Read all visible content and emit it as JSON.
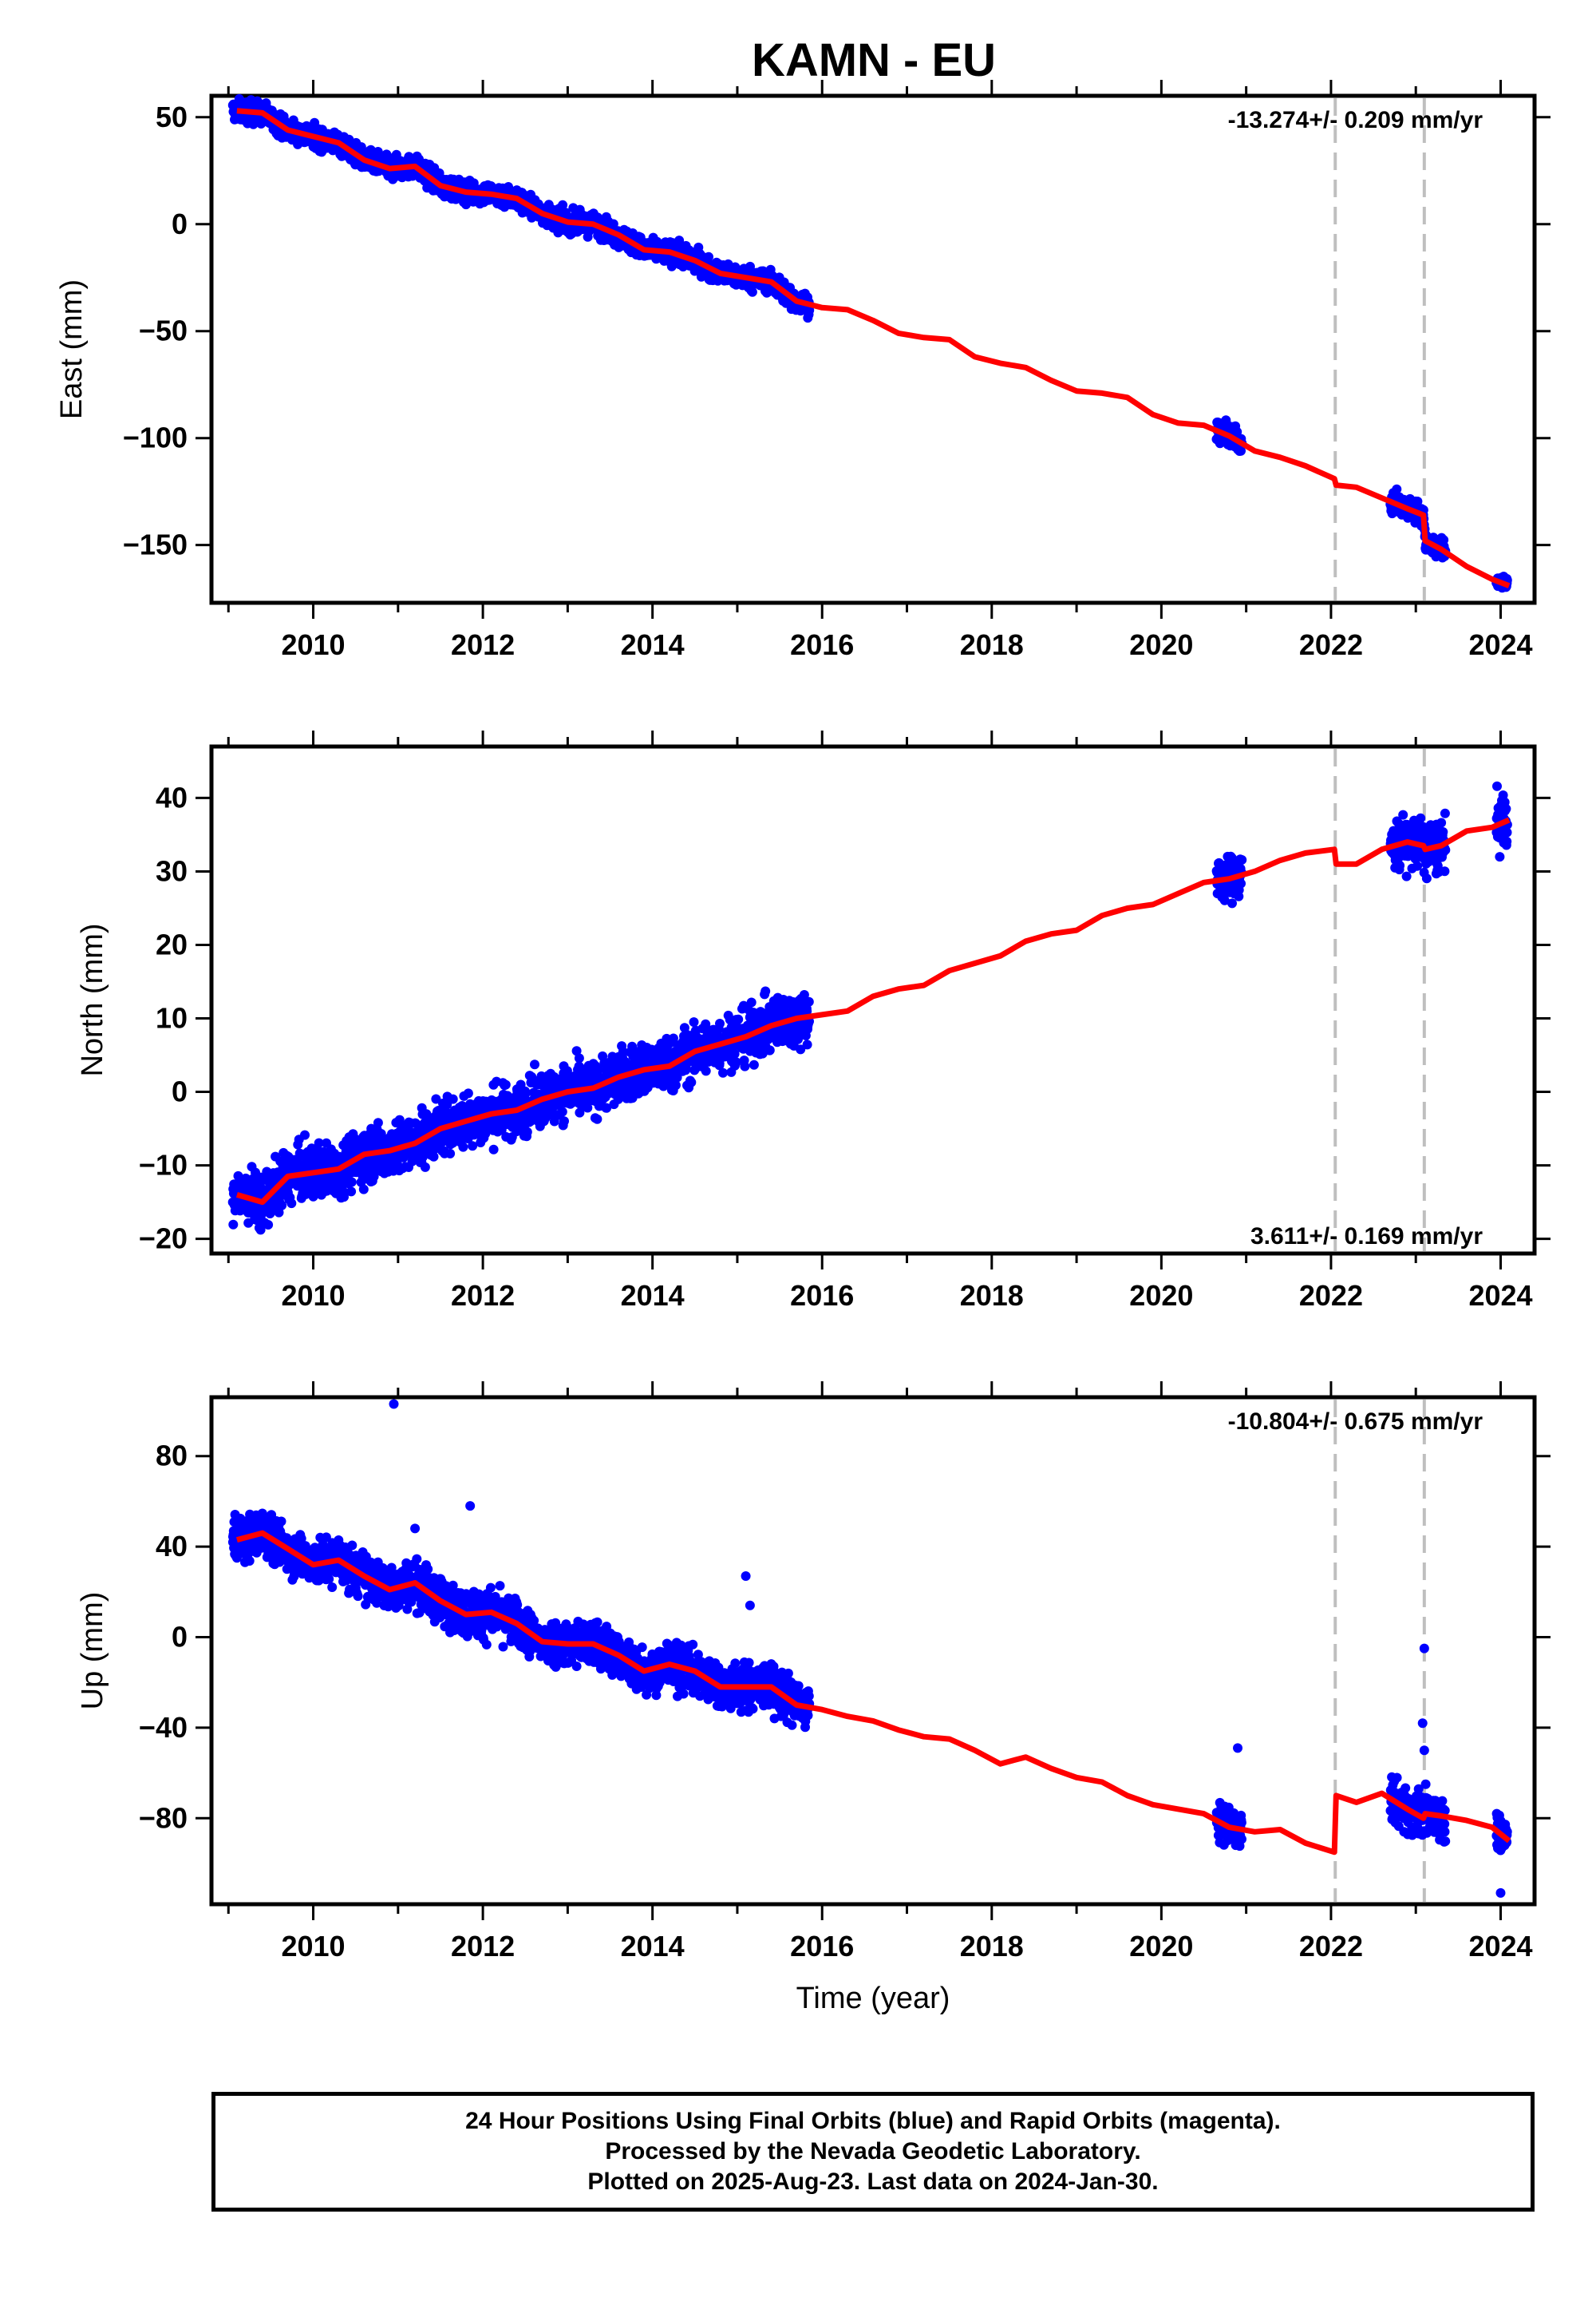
{
  "title": "KAMN - EU",
  "caption": {
    "line1": "24 Hour Positions Using Final Orbits (blue) and Rapid Orbits (magenta).",
    "line2": "Processed by the Nevada Geodetic Laboratory.",
    "line3": "Plotted on 2025-Aug-23. Last data on 2024-Jan-30."
  },
  "colors": {
    "data": "#0000ff",
    "model": "#ff0000",
    "offset_lines": "#bfbfbf"
  },
  "chart_data": [
    {
      "type": "scatter",
      "ylabel": "East (mm)",
      "xlabel": "",
      "xlim": [
        2008.8,
        2024.4
      ],
      "ylim": [
        -177,
        60
      ],
      "xticks": [
        2010,
        2012,
        2014,
        2016,
        2018,
        2020,
        2022,
        2024
      ],
      "yticks": [
        50,
        0,
        -50,
        -100,
        -150
      ],
      "rate_label": "-13.274+/- 0.209 mm/yr",
      "rate_label_position": "top-right",
      "offset_epochs": [
        2022.05,
        2023.1
      ],
      "model_line": {
        "name": "model",
        "x": [
          2009.1,
          2009.4,
          2009.7,
          2010.0,
          2010.3,
          2010.6,
          2010.9,
          2011.2,
          2011.5,
          2011.8,
          2012.1,
          2012.4,
          2012.7,
          2013.0,
          2013.3,
          2013.6,
          2013.9,
          2014.2,
          2014.5,
          2014.8,
          2015.1,
          2015.4,
          2015.7,
          2016.0,
          2016.3,
          2016.6,
          2016.9,
          2017.2,
          2017.5,
          2017.8,
          2018.1,
          2018.4,
          2018.7,
          2019.0,
          2019.3,
          2019.6,
          2019.9,
          2020.2,
          2020.5,
          2020.8,
          2021.1,
          2021.4,
          2021.7,
          2022.04,
          2022.06,
          2022.3,
          2022.6,
          2022.9,
          2023.09,
          2023.11,
          2023.3,
          2023.6,
          2023.9,
          2024.1
        ],
        "y": [
          53,
          52,
          44,
          41,
          38,
          30,
          26,
          27,
          18,
          15,
          14,
          12,
          5,
          1,
          0,
          -5,
          -12,
          -13,
          -17,
          -23,
          -25,
          -27,
          -36,
          -39,
          -40,
          -45,
          -51,
          -53,
          -54,
          -62,
          -65,
          -67,
          -73,
          -78,
          -79,
          -81,
          -89,
          -93,
          -94,
          -99,
          -106,
          -109,
          -113,
          -119,
          -122,
          -123,
          -128,
          -133,
          -136,
          -148,
          -152,
          -160,
          -166,
          -169
        ]
      },
      "data_segments": [
        {
          "from": 2009.05,
          "to": 2015.85,
          "scatter": 2.5
        },
        {
          "from": 2020.65,
          "to": 2020.95,
          "scatter": 2.5
        },
        {
          "from": 2022.7,
          "to": 2023.35,
          "scatter": 2.5
        },
        {
          "from": 2023.95,
          "to": 2024.08,
          "scatter": 1.5
        }
      ]
    },
    {
      "type": "scatter",
      "ylabel": "North (mm)",
      "xlabel": "",
      "xlim": [
        2008.8,
        2024.4
      ],
      "ylim": [
        -22,
        47
      ],
      "xticks": [
        2010,
        2012,
        2014,
        2016,
        2018,
        2020,
        2022,
        2024
      ],
      "yticks": [
        40,
        30,
        20,
        10,
        0,
        -10,
        -20
      ],
      "rate_label": "3.611+/- 0.169 mm/yr",
      "rate_label_position": "bottom-right",
      "offset_epochs": [
        2022.05,
        2023.1
      ],
      "model_line": {
        "name": "model",
        "x": [
          2009.1,
          2009.4,
          2009.7,
          2010.0,
          2010.3,
          2010.6,
          2010.9,
          2011.2,
          2011.5,
          2011.8,
          2012.1,
          2012.4,
          2012.7,
          2013.0,
          2013.3,
          2013.6,
          2013.9,
          2014.2,
          2014.5,
          2014.8,
          2015.1,
          2015.4,
          2015.7,
          2016.0,
          2016.3,
          2016.6,
          2016.9,
          2017.2,
          2017.5,
          2017.8,
          2018.1,
          2018.4,
          2018.7,
          2019.0,
          2019.3,
          2019.6,
          2019.9,
          2020.2,
          2020.5,
          2020.8,
          2021.1,
          2021.4,
          2021.7,
          2022.04,
          2022.06,
          2022.3,
          2022.6,
          2022.9,
          2023.09,
          2023.11,
          2023.3,
          2023.6,
          2023.9,
          2024.1
        ],
        "y": [
          -14,
          -15,
          -11.5,
          -11,
          -10.5,
          -8.5,
          -8,
          -7,
          -5,
          -4,
          -3,
          -2.5,
          -1,
          0,
          0.5,
          2,
          3,
          3.5,
          5.5,
          6.5,
          7.5,
          9,
          10,
          10.5,
          11,
          13,
          14,
          14.5,
          16.5,
          17.5,
          18.5,
          20.5,
          21.5,
          22,
          24,
          25,
          25.5,
          27,
          28.5,
          29,
          30,
          31.5,
          32.5,
          33,
          31,
          31,
          33,
          34,
          33.5,
          33,
          33.5,
          35.5,
          36,
          37
        ]
      },
      "data_segments": [
        {
          "from": 2009.05,
          "to": 2015.85,
          "scatter": 1.8
        },
        {
          "from": 2020.65,
          "to": 2020.95,
          "scatter": 1.5
        },
        {
          "from": 2022.7,
          "to": 2023.35,
          "scatter": 1.8
        },
        {
          "from": 2023.95,
          "to": 2024.08,
          "scatter": 2.0
        }
      ]
    },
    {
      "type": "scatter",
      "ylabel": "Up (mm)",
      "xlabel": "Time (year)",
      "xlim": [
        2008.8,
        2024.4
      ],
      "ylim": [
        -118,
        106
      ],
      "xticks": [
        2010,
        2012,
        2014,
        2016,
        2018,
        2020,
        2022,
        2024
      ],
      "yticks": [
        80,
        40,
        0,
        -40,
        -80
      ],
      "rate_label": "-10.804+/- 0.675 mm/yr",
      "rate_label_position": "top-right",
      "offset_epochs": [
        2022.05,
        2023.1
      ],
      "model_line": {
        "name": "model",
        "x": [
          2009.1,
          2009.4,
          2009.7,
          2010.0,
          2010.3,
          2010.6,
          2010.9,
          2011.2,
          2011.5,
          2011.8,
          2012.1,
          2012.4,
          2012.7,
          2013.0,
          2013.3,
          2013.6,
          2013.9,
          2014.2,
          2014.5,
          2014.8,
          2015.1,
          2015.4,
          2015.7,
          2016.0,
          2016.3,
          2016.6,
          2016.9,
          2017.2,
          2017.5,
          2017.8,
          2018.1,
          2018.4,
          2018.7,
          2019.0,
          2019.3,
          2019.6,
          2019.9,
          2020.2,
          2020.5,
          2020.8,
          2021.1,
          2021.4,
          2021.7,
          2022.04,
          2022.06,
          2022.3,
          2022.6,
          2022.9,
          2023.09,
          2023.11,
          2023.3,
          2023.6,
          2023.9,
          2024.1
        ],
        "y": [
          43,
          46,
          39,
          32,
          34,
          27,
          21,
          24,
          16,
          10,
          11,
          6,
          -2,
          -3,
          -3,
          -8,
          -15,
          -12,
          -15,
          -22,
          -22,
          -22,
          -30,
          -32,
          -35,
          -37,
          -41,
          -44,
          -45,
          -50,
          -56,
          -53,
          -58,
          -62,
          -64,
          -70,
          -74,
          -76,
          -78,
          -84,
          -86,
          -85,
          -91,
          -95,
          -70,
          -73,
          -69,
          -76,
          -80,
          -78,
          -79,
          -81,
          -84,
          -90
        ]
      },
      "data_segments": [
        {
          "from": 2009.05,
          "to": 2015.85,
          "scatter": 5
        },
        {
          "from": 2020.65,
          "to": 2020.95,
          "scatter": 4
        },
        {
          "from": 2022.7,
          "to": 2023.35,
          "scatter": 5
        },
        {
          "from": 2023.95,
          "to": 2024.08,
          "scatter": 5
        }
      ],
      "outliers": [
        {
          "x": 2010.95,
          "y": 103
        },
        {
          "x": 2011.85,
          "y": 58
        },
        {
          "x": 2011.2,
          "y": 48
        },
        {
          "x": 2015.1,
          "y": 27
        },
        {
          "x": 2015.15,
          "y": 14
        },
        {
          "x": 2023.1,
          "y": -5
        },
        {
          "x": 2023.08,
          "y": -38
        },
        {
          "x": 2023.1,
          "y": -50
        },
        {
          "x": 2024.0,
          "y": -113
        },
        {
          "x": 2020.9,
          "y": -49
        }
      ]
    }
  ]
}
